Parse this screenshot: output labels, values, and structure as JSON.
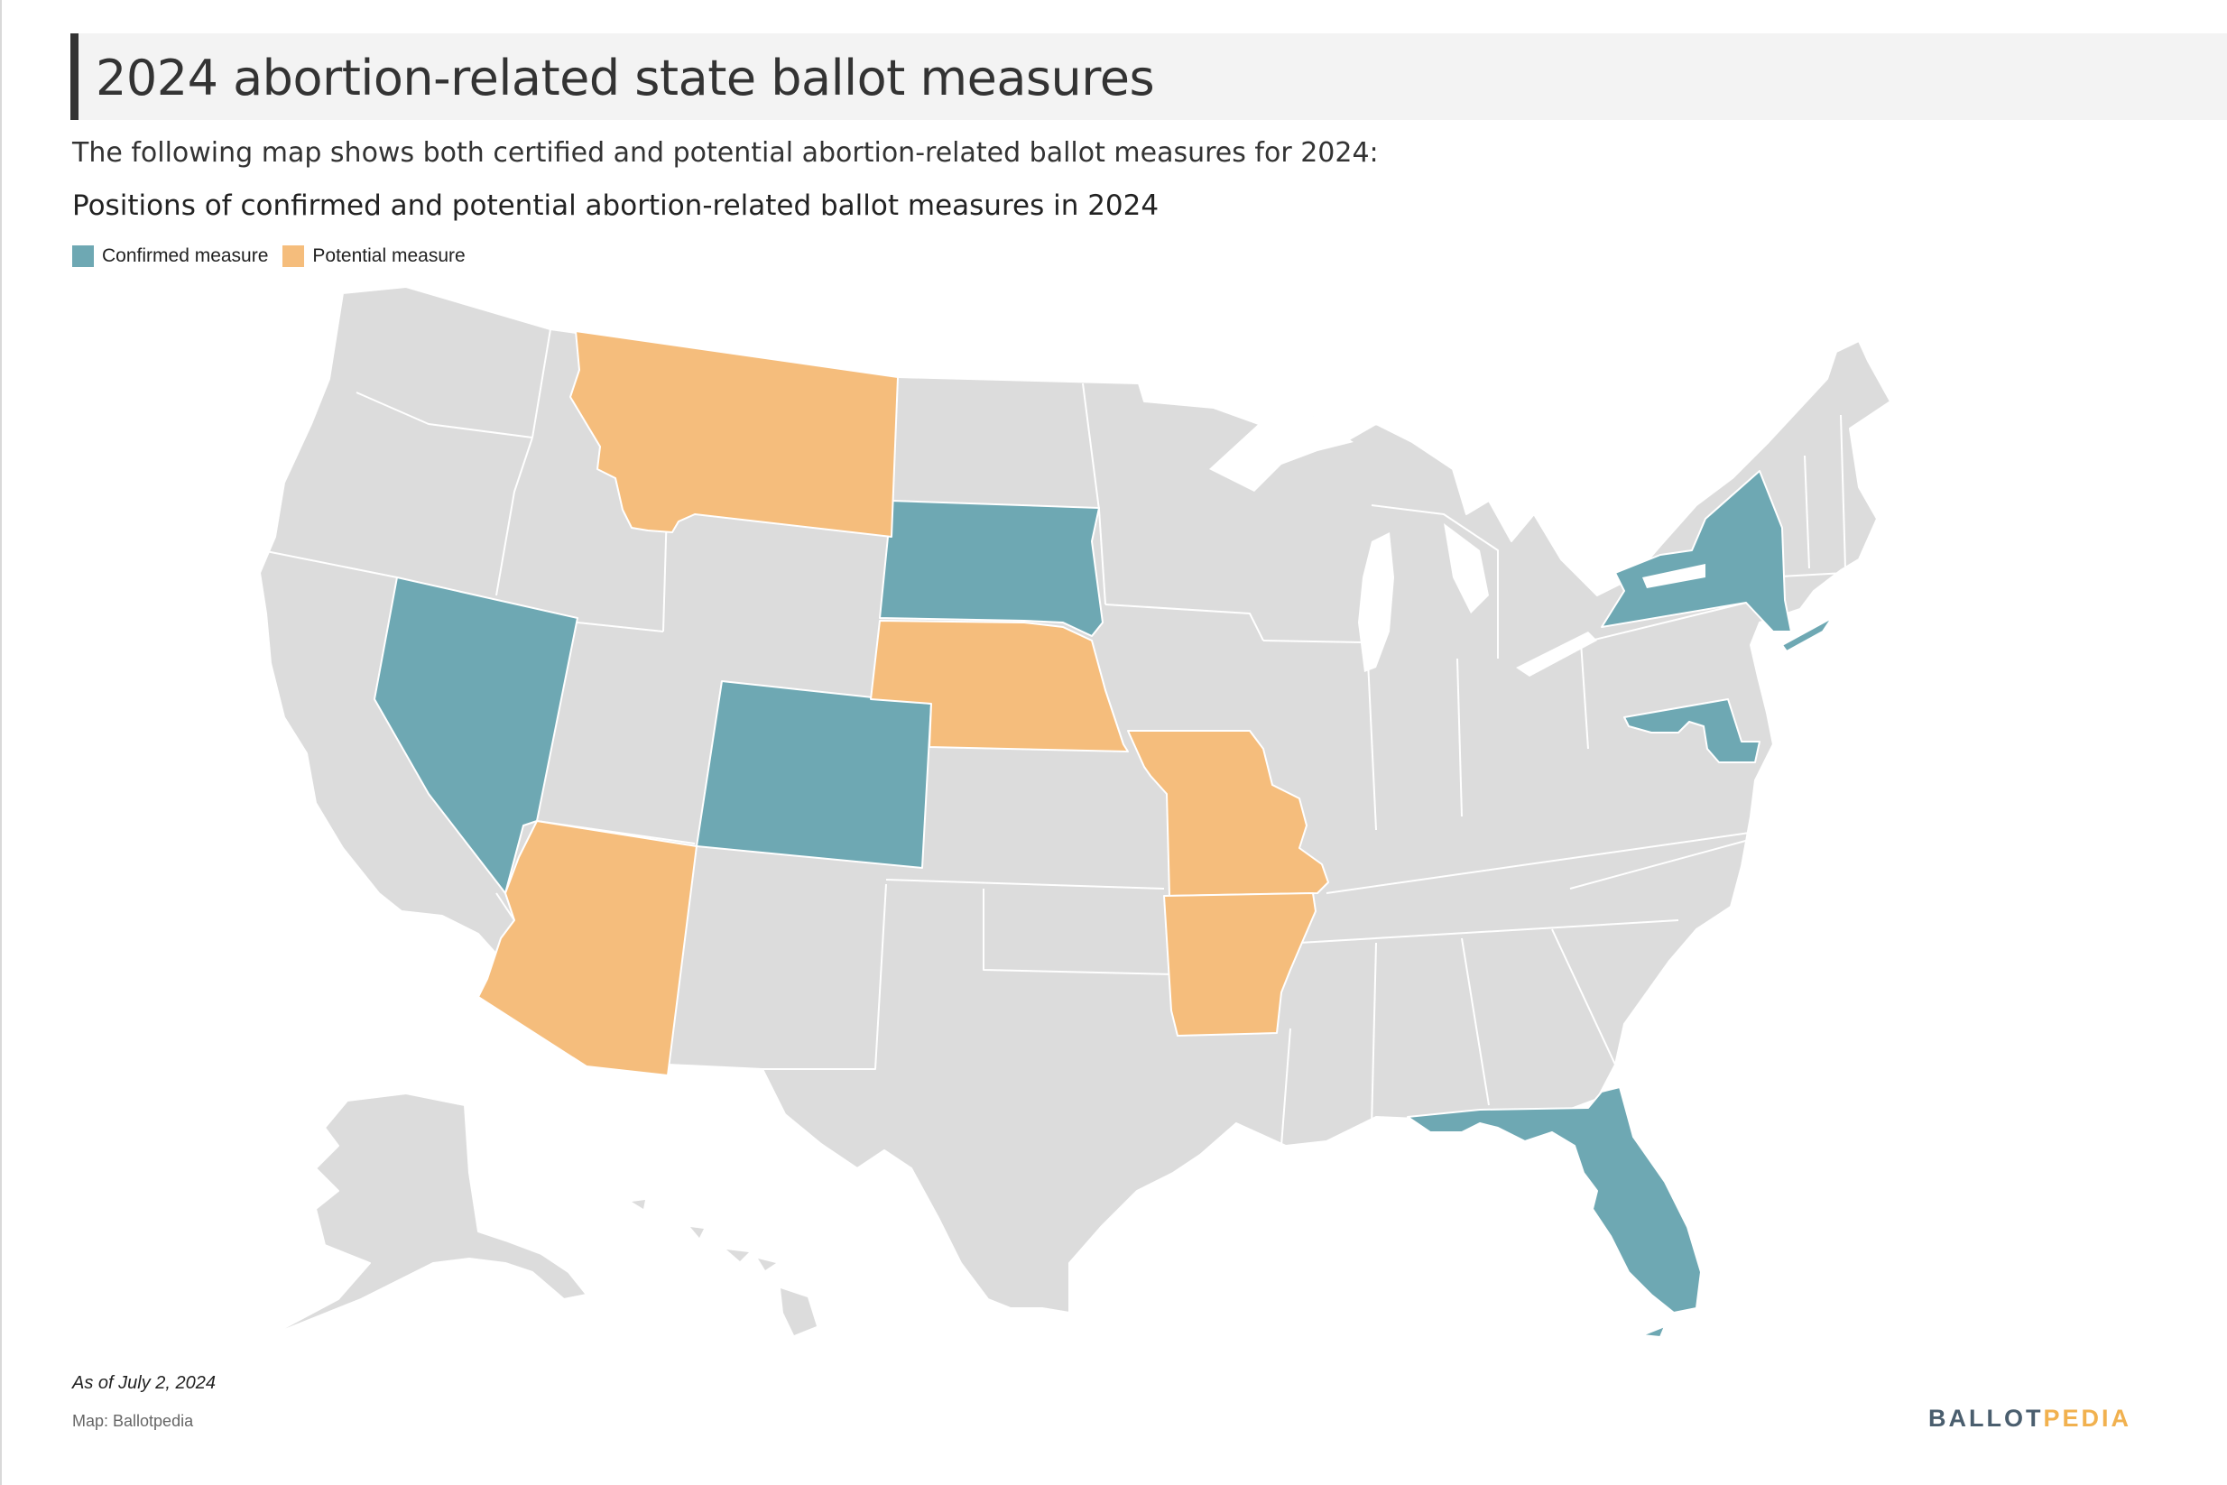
{
  "header": {
    "title": "2024 abortion-related state ballot measures"
  },
  "intro": "The following map shows both certified and potential abortion-related ballot measures for 2024:",
  "map": {
    "title": "Positions of confirmed and potential abortion-related ballot measures in 2024",
    "legend": [
      {
        "label": "Confirmed measure",
        "color": "#6ea8b3"
      },
      {
        "label": "Potential measure",
        "color": "#f5bd7c"
      }
    ],
    "colors": {
      "confirmed": "#6ea8b3",
      "potential": "#f5bd7c",
      "none": "#dcdcdc",
      "border": "#ffffff"
    },
    "confirmed_states": [
      "Nevada",
      "Colorado",
      "South Dakota",
      "New York",
      "Maryland",
      "Florida"
    ],
    "potential_states": [
      "Montana",
      "Arizona",
      "Nebraska",
      "Missouri",
      "Arkansas"
    ]
  },
  "footer": {
    "as_of": "As of July 2, 2024",
    "credit": "Map: Ballotpedia",
    "logo_part1": "BALLOT",
    "logo_part2": "PEDIA"
  }
}
